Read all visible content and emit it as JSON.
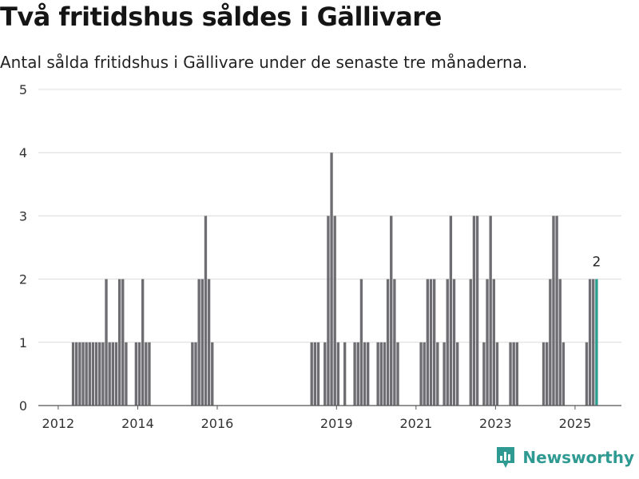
{
  "title": "Två fritidshus såldes i Gällivare",
  "subtitle": "Antal sålda fritidshus i Gällivare under de senaste tre månaderna.",
  "brand": {
    "name": "Newsworthy",
    "color": "#2f9a92",
    "icon": "newsworthy-chart-logo-icon"
  },
  "chart_data": {
    "type": "bar",
    "title": "Två fritidshus såldes i Gällivare",
    "subtitle": "Antal sålda fritidshus i Gällivare under de senaste tre månaderna.",
    "xlabel": "",
    "ylabel": "",
    "x_ticks": [
      "2012",
      "2014",
      "2016",
      "2019",
      "2021",
      "2023",
      "2025"
    ],
    "y_ticks": [
      0,
      1,
      2,
      3,
      4,
      5
    ],
    "ylim": [
      0,
      5
    ],
    "x_range": [
      "2011-07",
      "2026-03"
    ],
    "grid": true,
    "bar_color": "#6d6d72",
    "highlight_color": "#2a9d8f",
    "series": [
      {
        "values": [
          {
            "x": "2012-05",
            "y": 1
          },
          {
            "x": "2012-06",
            "y": 1
          },
          {
            "x": "2012-07",
            "y": 1
          },
          {
            "x": "2012-08",
            "y": 1
          },
          {
            "x": "2012-09",
            "y": 1
          },
          {
            "x": "2012-10",
            "y": 1
          },
          {
            "x": "2012-11",
            "y": 1
          },
          {
            "x": "2012-12",
            "y": 1
          },
          {
            "x": "2013-01",
            "y": 1
          },
          {
            "x": "2013-02",
            "y": 1
          },
          {
            "x": "2013-03",
            "y": 2
          },
          {
            "x": "2013-04",
            "y": 1
          },
          {
            "x": "2013-05",
            "y": 1
          },
          {
            "x": "2013-06",
            "y": 1
          },
          {
            "x": "2013-07",
            "y": 2
          },
          {
            "x": "2013-08",
            "y": 2
          },
          {
            "x": "2013-09",
            "y": 1
          },
          {
            "x": "2013-12",
            "y": 1
          },
          {
            "x": "2014-01",
            "y": 1
          },
          {
            "x": "2014-02",
            "y": 2
          },
          {
            "x": "2014-03",
            "y": 1
          },
          {
            "x": "2014-04",
            "y": 1
          },
          {
            "x": "2015-05",
            "y": 1
          },
          {
            "x": "2015-06",
            "y": 1
          },
          {
            "x": "2015-07",
            "y": 2
          },
          {
            "x": "2015-08",
            "y": 2
          },
          {
            "x": "2015-09",
            "y": 3
          },
          {
            "x": "2015-10",
            "y": 2
          },
          {
            "x": "2015-11",
            "y": 1
          },
          {
            "x": "2018-05",
            "y": 1
          },
          {
            "x": "2018-06",
            "y": 1
          },
          {
            "x": "2018-07",
            "y": 1
          },
          {
            "x": "2018-09",
            "y": 1
          },
          {
            "x": "2018-10",
            "y": 3
          },
          {
            "x": "2018-11",
            "y": 4
          },
          {
            "x": "2018-12",
            "y": 3
          },
          {
            "x": "2019-01",
            "y": 1
          },
          {
            "x": "2019-03",
            "y": 1
          },
          {
            "x": "2019-06",
            "y": 1
          },
          {
            "x": "2019-07",
            "y": 1
          },
          {
            "x": "2019-08",
            "y": 2
          },
          {
            "x": "2019-09",
            "y": 1
          },
          {
            "x": "2019-10",
            "y": 1
          },
          {
            "x": "2020-01",
            "y": 1
          },
          {
            "x": "2020-02",
            "y": 1
          },
          {
            "x": "2020-03",
            "y": 1
          },
          {
            "x": "2020-04",
            "y": 2
          },
          {
            "x": "2020-05",
            "y": 3
          },
          {
            "x": "2020-06",
            "y": 2
          },
          {
            "x": "2020-07",
            "y": 1
          },
          {
            "x": "2021-02",
            "y": 1
          },
          {
            "x": "2021-03",
            "y": 1
          },
          {
            "x": "2021-04",
            "y": 2
          },
          {
            "x": "2021-05",
            "y": 2
          },
          {
            "x": "2021-06",
            "y": 2
          },
          {
            "x": "2021-07",
            "y": 1
          },
          {
            "x": "2021-09",
            "y": 1
          },
          {
            "x": "2021-10",
            "y": 2
          },
          {
            "x": "2021-11",
            "y": 3
          },
          {
            "x": "2021-12",
            "y": 2
          },
          {
            "x": "2022-01",
            "y": 1
          },
          {
            "x": "2022-05",
            "y": 2
          },
          {
            "x": "2022-06",
            "y": 3
          },
          {
            "x": "2022-07",
            "y": 3
          },
          {
            "x": "2022-09",
            "y": 1
          },
          {
            "x": "2022-10",
            "y": 2
          },
          {
            "x": "2022-11",
            "y": 3
          },
          {
            "x": "2022-12",
            "y": 2
          },
          {
            "x": "2023-01",
            "y": 1
          },
          {
            "x": "2023-05",
            "y": 1
          },
          {
            "x": "2023-06",
            "y": 1
          },
          {
            "x": "2023-07",
            "y": 1
          },
          {
            "x": "2024-03",
            "y": 1
          },
          {
            "x": "2024-04",
            "y": 1
          },
          {
            "x": "2024-05",
            "y": 2
          },
          {
            "x": "2024-06",
            "y": 3
          },
          {
            "x": "2024-07",
            "y": 3
          },
          {
            "x": "2024-08",
            "y": 2
          },
          {
            "x": "2024-09",
            "y": 1
          },
          {
            "x": "2025-04",
            "y": 1
          },
          {
            "x": "2025-05",
            "y": 2
          },
          {
            "x": "2025-06",
            "y": 2
          },
          {
            "x": "2025-07",
            "y": 2
          }
        ]
      }
    ],
    "annotations": [
      {
        "x": "2025-07",
        "text": "2"
      }
    ]
  }
}
